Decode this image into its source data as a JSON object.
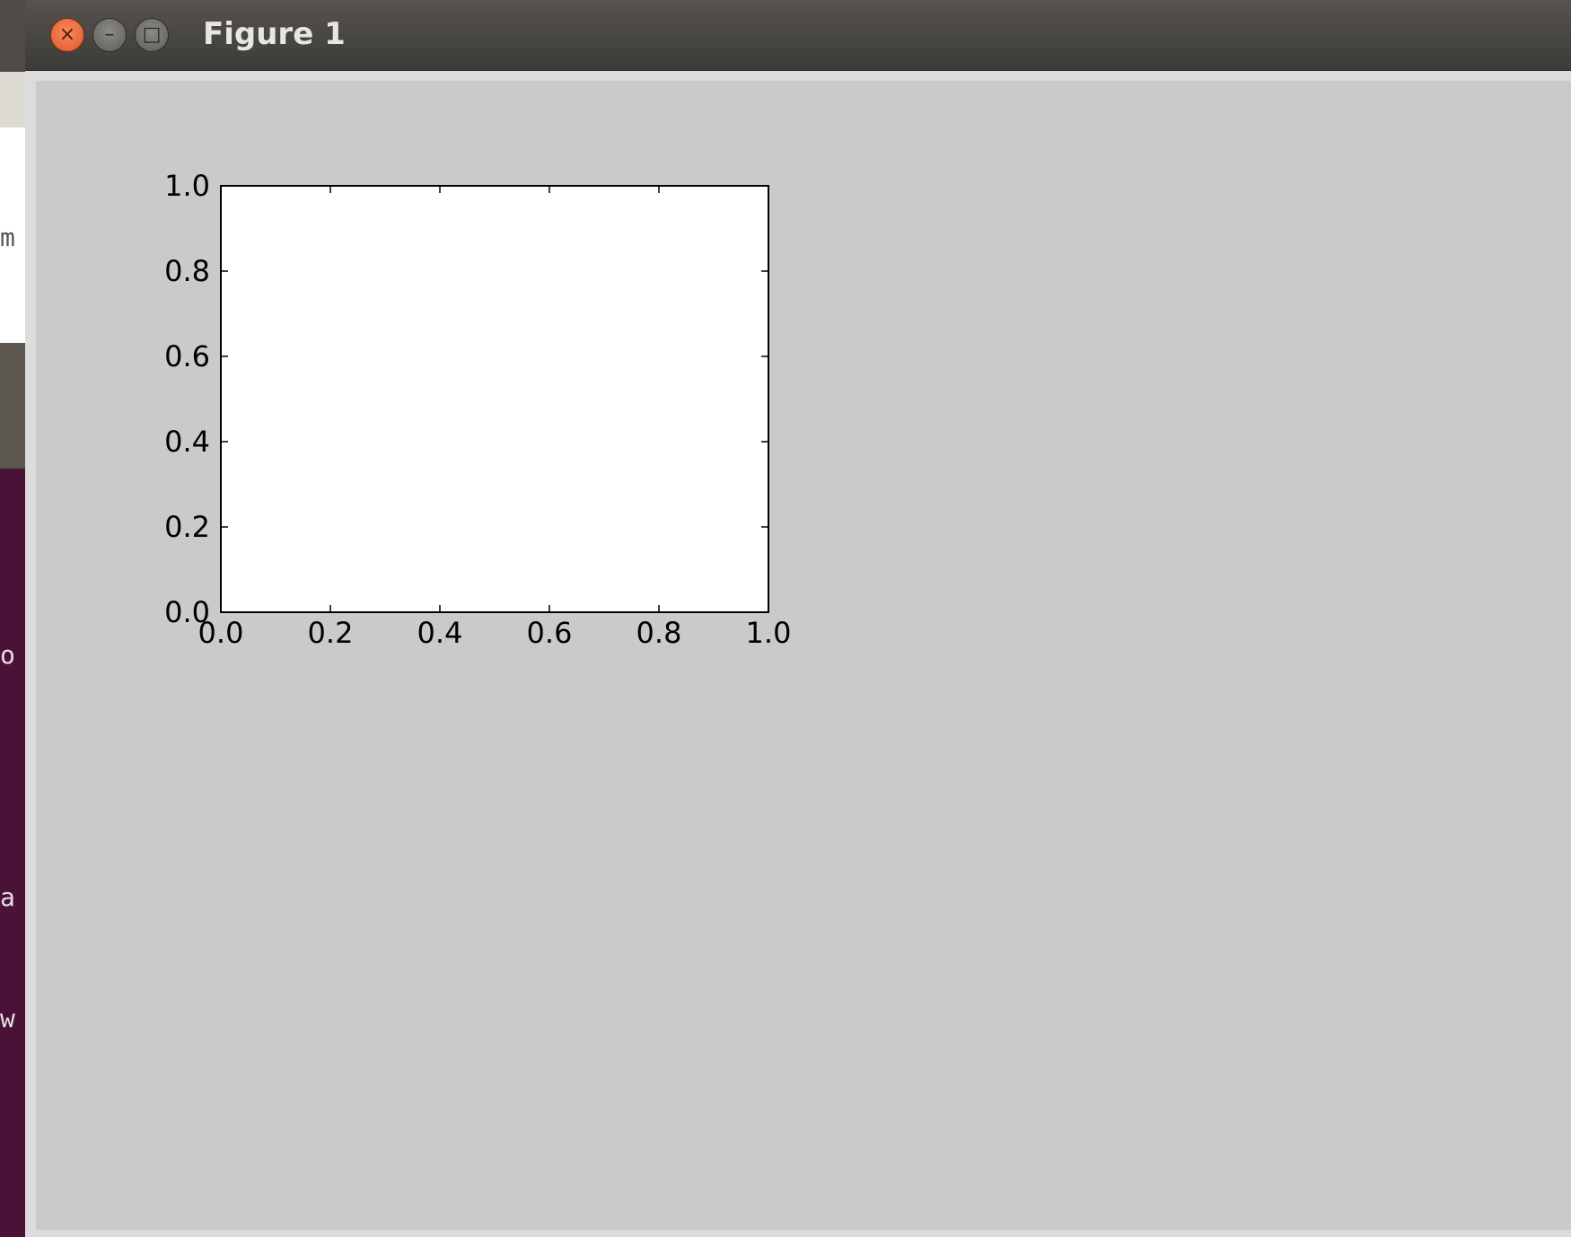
{
  "background_app": {
    "fragments": [
      "m",
      "o",
      "a",
      "w"
    ]
  },
  "window": {
    "title": "Figure 1",
    "close_glyph": "×",
    "minimize_glyph": "–",
    "maximize_glyph": "□"
  },
  "colors": {
    "titlebar": "#3c3b37",
    "close_button": "#e05a24",
    "figure_background": "#cacaca",
    "axes_background": "#ffffff",
    "desktop": "#4a1236"
  },
  "chart_data": {
    "type": "line",
    "series": [],
    "xlim": [
      0.0,
      1.0
    ],
    "ylim": [
      0.0,
      1.0
    ],
    "xticks": [
      "0.0",
      "0.2",
      "0.4",
      "0.6",
      "0.8",
      "1.0"
    ],
    "yticks": [
      "0.0",
      "0.2",
      "0.4",
      "0.6",
      "0.8",
      "1.0"
    ],
    "grid": false
  }
}
